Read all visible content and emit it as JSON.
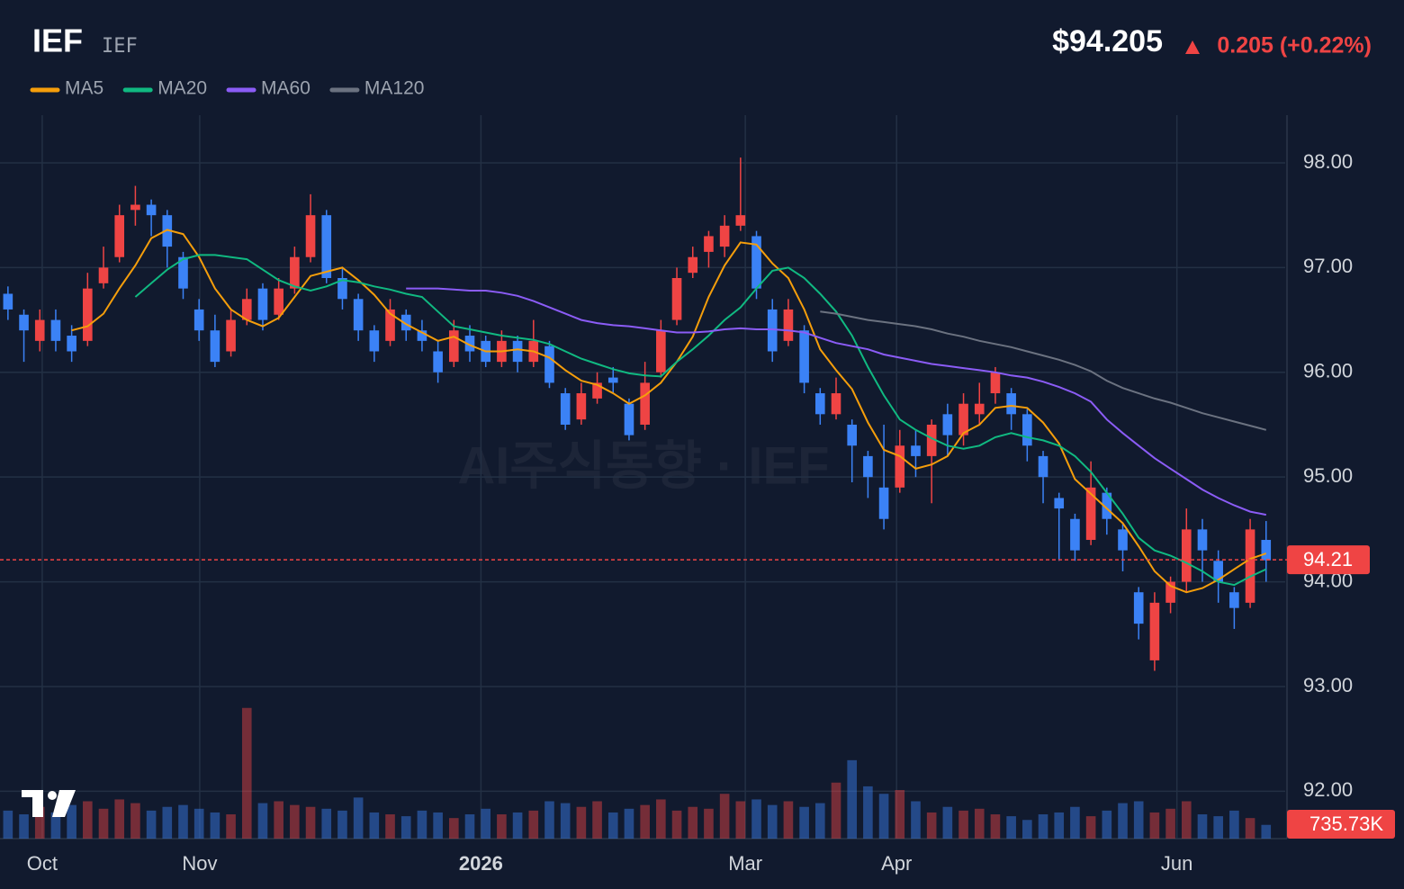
{
  "header": {
    "symbol": "IEF",
    "subtitle": "IEF",
    "price": "$94.205",
    "change": "0.205 (+0.22%)"
  },
  "chart_data": {
    "type": "candlestick",
    "watermark": "AI주식동향 · IEF",
    "up_color": "#ef4444",
    "down_color": "#3b82f6",
    "ylim": [
      91.548,
      98.455
    ],
    "yticks": [
      {
        "value": 92,
        "label": "92.00"
      },
      {
        "value": 93,
        "label": "93.00"
      },
      {
        "value": 94,
        "label": "94.00"
      },
      {
        "value": 95,
        "label": "95.00"
      },
      {
        "value": 96,
        "label": "96.00"
      },
      {
        "value": 97,
        "label": "97.00"
      },
      {
        "value": 98,
        "label": "98.00"
      }
    ],
    "xlim": [
      -0.5,
      80.2
    ],
    "xticks": [
      {
        "value": 2.15,
        "label": "Oct"
      },
      {
        "value": 12.04,
        "label": "Nov"
      },
      {
        "value": 29.7,
        "label": "2026"
      },
      {
        "value": 46.3,
        "label": "Mar"
      },
      {
        "value": 55.8,
        "label": "Apr"
      },
      {
        "value": 73.4,
        "label": "Jun"
      }
    ],
    "grid": true,
    "last_price": 94.21,
    "volume_badge": "735.73K",
    "vlim": [
      0,
      8000000
    ],
    "ohlc": [
      [
        96.75,
        96.82,
        96.5,
        96.6
      ],
      [
        96.55,
        96.6,
        96.1,
        96.4
      ],
      [
        96.3,
        96.6,
        96.2,
        96.5
      ],
      [
        96.5,
        96.6,
        96.2,
        96.3
      ],
      [
        96.35,
        96.45,
        96.1,
        96.2
      ],
      [
        96.3,
        96.95,
        96.25,
        96.8
      ],
      [
        96.85,
        97.2,
        96.8,
        97.0
      ],
      [
        97.1,
        97.6,
        97.05,
        97.5
      ],
      [
        97.55,
        97.78,
        97.4,
        97.6
      ],
      [
        97.6,
        97.65,
        97.3,
        97.5
      ],
      [
        97.5,
        97.55,
        97.0,
        97.2
      ],
      [
        97.1,
        97.15,
        96.7,
        96.8
      ],
      [
        96.6,
        96.7,
        96.3,
        96.4
      ],
      [
        96.4,
        96.55,
        96.05,
        96.1
      ],
      [
        96.2,
        96.6,
        96.15,
        96.5
      ],
      [
        96.5,
        96.8,
        96.45,
        96.7
      ],
      [
        96.8,
        96.85,
        96.4,
        96.5
      ],
      [
        96.55,
        96.9,
        96.5,
        96.8
      ],
      [
        96.8,
        97.2,
        96.75,
        97.1
      ],
      [
        97.1,
        97.7,
        97.05,
        97.5
      ],
      [
        97.5,
        97.55,
        96.85,
        96.9
      ],
      [
        96.9,
        97.0,
        96.6,
        96.7
      ],
      [
        96.7,
        96.75,
        96.3,
        96.4
      ],
      [
        96.4,
        96.45,
        96.1,
        96.2
      ],
      [
        96.3,
        96.7,
        96.25,
        96.6
      ],
      [
        96.55,
        96.6,
        96.3,
        96.4
      ],
      [
        96.4,
        96.5,
        96.2,
        96.3
      ],
      [
        96.2,
        96.3,
        95.9,
        96.0
      ],
      [
        96.1,
        96.5,
        96.05,
        96.4
      ],
      [
        96.35,
        96.45,
        96.1,
        96.2
      ],
      [
        96.3,
        96.35,
        96.05,
        96.1
      ],
      [
        96.1,
        96.4,
        96.05,
        96.3
      ],
      [
        96.3,
        96.35,
        96.0,
        96.1
      ],
      [
        96.1,
        96.5,
        96.05,
        96.3
      ],
      [
        96.25,
        96.3,
        95.85,
        95.9
      ],
      [
        95.8,
        95.85,
        95.45,
        95.5
      ],
      [
        95.55,
        95.9,
        95.5,
        95.8
      ],
      [
        95.75,
        96.0,
        95.7,
        95.9
      ],
      [
        95.95,
        96.05,
        95.8,
        95.9
      ],
      [
        95.7,
        95.75,
        95.35,
        95.4
      ],
      [
        95.5,
        96.1,
        95.45,
        95.9
      ],
      [
        96.0,
        96.5,
        95.95,
        96.4
      ],
      [
        96.5,
        97.0,
        96.45,
        96.9
      ],
      [
        96.95,
        97.2,
        96.9,
        97.1
      ],
      [
        97.15,
        97.35,
        97.0,
        97.3
      ],
      [
        97.2,
        97.5,
        97.1,
        97.4
      ],
      [
        97.4,
        98.05,
        97.35,
        97.5
      ],
      [
        97.3,
        97.35,
        96.7,
        96.8
      ],
      [
        96.6,
        96.7,
        96.1,
        96.2
      ],
      [
        96.3,
        96.7,
        96.25,
        96.6
      ],
      [
        96.4,
        96.45,
        95.8,
        95.9
      ],
      [
        95.8,
        95.85,
        95.5,
        95.6
      ],
      [
        95.6,
        95.95,
        95.55,
        95.8
      ],
      [
        95.5,
        95.55,
        94.95,
        95.3
      ],
      [
        95.2,
        95.25,
        94.8,
        95.0
      ],
      [
        94.9,
        95.5,
        94.5,
        94.6
      ],
      [
        94.9,
        95.45,
        94.85,
        95.3
      ],
      [
        95.3,
        95.45,
        95.0,
        95.2
      ],
      [
        95.2,
        95.55,
        94.75,
        95.5
      ],
      [
        95.6,
        95.7,
        95.2,
        95.4
      ],
      [
        95.4,
        95.8,
        95.3,
        95.7
      ],
      [
        95.6,
        95.9,
        95.5,
        95.7
      ],
      [
        95.8,
        96.05,
        95.7,
        96.0
      ],
      [
        95.8,
        95.85,
        95.45,
        95.6
      ],
      [
        95.6,
        95.65,
        95.15,
        95.3
      ],
      [
        95.2,
        95.25,
        94.75,
        95.0
      ],
      [
        94.8,
        94.85,
        94.2,
        94.7
      ],
      [
        94.6,
        94.65,
        94.2,
        94.3
      ],
      [
        94.4,
        95.15,
        94.35,
        94.9
      ],
      [
        94.85,
        94.9,
        94.45,
        94.6
      ],
      [
        94.5,
        94.55,
        94.1,
        94.3
      ],
      [
        93.9,
        93.95,
        93.45,
        93.6
      ],
      [
        93.25,
        93.9,
        93.15,
        93.8
      ],
      [
        93.8,
        94.05,
        93.7,
        94.0
      ],
      [
        94.0,
        94.7,
        93.9,
        94.5
      ],
      [
        94.5,
        94.6,
        94.0,
        94.3
      ],
      [
        94.2,
        94.3,
        93.8,
        94.0
      ],
      [
        93.9,
        93.95,
        93.55,
        93.75
      ],
      [
        93.8,
        94.6,
        93.75,
        94.5
      ],
      [
        94.4,
        94.58,
        94.0,
        94.205
      ]
    ],
    "volume": [
      1500000,
      1300000,
      1700000,
      1400000,
      1800000,
      2000000,
      1600000,
      2100000,
      1900000,
      1500000,
      1700000,
      1800000,
      1600000,
      1400000,
      1300000,
      7000000,
      1900000,
      2000000,
      1800000,
      1700000,
      1600000,
      1500000,
      2200000,
      1400000,
      1300000,
      1200000,
      1500000,
      1400000,
      1100000,
      1300000,
      1600000,
      1300000,
      1400000,
      1500000,
      2000000,
      1900000,
      1700000,
      2000000,
      1400000,
      1600000,
      1800000,
      2100000,
      1500000,
      1700000,
      1600000,
      2400000,
      2000000,
      2100000,
      1800000,
      2000000,
      1700000,
      1900000,
      3000000,
      4200000,
      2800000,
      2400000,
      2600000,
      2000000,
      1400000,
      1700000,
      1500000,
      1600000,
      1300000,
      1200000,
      1000000,
      1300000,
      1400000,
      1700000,
      1200000,
      1500000,
      1900000,
      2000000,
      1400000,
      1600000,
      2000000,
      1300000,
      1200000,
      1500000,
      1100000,
      735730
    ],
    "series": [
      {
        "name": "MA5",
        "color": "#f59e0b",
        "values": [
          null,
          null,
          null,
          null,
          96.4,
          96.44,
          96.56,
          96.8,
          97.02,
          97.28,
          97.36,
          97.32,
          97.1,
          96.8,
          96.6,
          96.5,
          96.44,
          96.52,
          96.72,
          96.92,
          96.96,
          97.0,
          96.88,
          96.74,
          96.56,
          96.46,
          96.38,
          96.3,
          96.34,
          96.26,
          96.2,
          96.2,
          96.22,
          96.2,
          96.14,
          96.02,
          95.92,
          95.88,
          95.8,
          95.7,
          95.78,
          95.9,
          96.1,
          96.34,
          96.72,
          97.02,
          97.24,
          97.22,
          97.04,
          96.9,
          96.6,
          96.22,
          96.02,
          95.84,
          95.52,
          95.26,
          95.2,
          95.08,
          95.12,
          95.2,
          95.42,
          95.5,
          95.66,
          95.68,
          95.66,
          95.52,
          95.32,
          94.98,
          94.84,
          94.7,
          94.56,
          94.34,
          94.1,
          93.96,
          93.9,
          93.94,
          94.02,
          94.12,
          94.22,
          94.27
        ]
      },
      {
        "name": "MA20",
        "color": "#10b981",
        "values": [
          null,
          null,
          null,
          null,
          null,
          null,
          null,
          null,
          96.72,
          96.85,
          96.98,
          97.08,
          97.12,
          97.12,
          97.1,
          97.08,
          96.98,
          96.88,
          96.82,
          96.78,
          96.82,
          96.88,
          96.86,
          96.82,
          96.79,
          96.75,
          96.72,
          96.58,
          96.44,
          96.41,
          96.38,
          96.35,
          96.33,
          96.31,
          96.27,
          96.2,
          96.13,
          96.08,
          96.03,
          95.99,
          95.97,
          95.96,
          96.1,
          96.22,
          96.35,
          96.5,
          96.62,
          96.8,
          96.97,
          97.0,
          96.9,
          96.75,
          96.58,
          96.35,
          96.05,
          95.78,
          95.55,
          95.45,
          95.37,
          95.3,
          95.27,
          95.3,
          95.38,
          95.42,
          95.38,
          95.35,
          95.3,
          95.2,
          95.05,
          94.85,
          94.65,
          94.42,
          94.3,
          94.25,
          94.18,
          94.1,
          94.0,
          93.97,
          94.05,
          94.12
        ]
      },
      {
        "name": "MA60",
        "color": "#8b5cf6",
        "values": [
          null,
          null,
          null,
          null,
          null,
          null,
          null,
          null,
          null,
          null,
          null,
          null,
          null,
          null,
          null,
          null,
          null,
          null,
          null,
          null,
          null,
          null,
          null,
          null,
          null,
          96.8,
          96.8,
          96.8,
          96.79,
          96.78,
          96.78,
          96.76,
          96.73,
          96.68,
          96.62,
          96.56,
          96.5,
          96.47,
          96.45,
          96.44,
          96.42,
          96.4,
          96.38,
          96.38,
          96.39,
          96.41,
          96.42,
          96.41,
          96.41,
          96.4,
          96.38,
          96.33,
          96.28,
          96.25,
          96.22,
          96.17,
          96.14,
          96.11,
          96.08,
          96.06,
          96.04,
          96.02,
          96.0,
          95.97,
          95.95,
          95.91,
          95.86,
          95.8,
          95.72,
          95.55,
          95.42,
          95.3,
          95.18,
          95.08,
          94.98,
          94.88,
          94.8,
          94.73,
          94.67,
          94.64
        ]
      },
      {
        "name": "MA120",
        "color": "#6b7280",
        "values": [
          null,
          null,
          null,
          null,
          null,
          null,
          null,
          null,
          null,
          null,
          null,
          null,
          null,
          null,
          null,
          null,
          null,
          null,
          null,
          null,
          null,
          null,
          null,
          null,
          null,
          null,
          null,
          null,
          null,
          null,
          null,
          null,
          null,
          null,
          null,
          null,
          null,
          null,
          null,
          null,
          null,
          null,
          null,
          null,
          null,
          null,
          null,
          null,
          null,
          null,
          null,
          96.58,
          96.56,
          96.53,
          96.5,
          96.48,
          96.46,
          96.44,
          96.41,
          96.37,
          96.34,
          96.3,
          96.27,
          96.24,
          96.2,
          96.16,
          96.12,
          96.07,
          96.01,
          95.92,
          95.85,
          95.8,
          95.75,
          95.71,
          95.66,
          95.61,
          95.57,
          95.53,
          95.49,
          95.45
        ]
      }
    ]
  }
}
